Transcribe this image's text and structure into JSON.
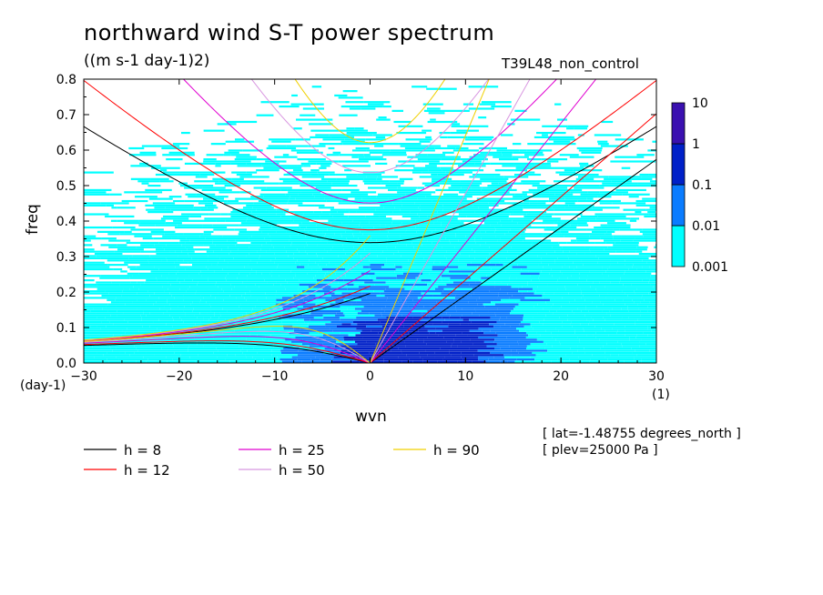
{
  "chart_data": {
    "type": "heatmap",
    "title": "northward wind S-T power spectrum",
    "units": "((m s-1 day-1)2)",
    "run_name": "T39L48_non_control",
    "xlabel": "wvn",
    "ylabel": "freq",
    "x_unit_left": "(day-1)",
    "x_unit_right": "(1)",
    "xlim": [
      -30,
      30
    ],
    "ylim": [
      0,
      0.8
    ],
    "xticks": [
      -30,
      -20,
      -10,
      0,
      10,
      20,
      30
    ],
    "yticks": [
      0.0,
      0.1,
      0.2,
      0.3,
      0.4,
      0.5,
      0.6,
      0.7,
      0.8
    ],
    "colorbar": {
      "levels": [
        "0.001",
        "0.01",
        "0.1",
        "1",
        "10"
      ],
      "colors": [
        "#00ffff",
        "#0a7cff",
        "#0020c8",
        "#3a10b0"
      ]
    },
    "colors": {
      "h8": "#000000",
      "h12": "#ff0000",
      "h25": "#e000d0",
      "h50": "#d896e0",
      "h90": "#f0d000"
    },
    "dispersion_curves": [
      {
        "name": "h =  8",
        "h": 8,
        "color": "#000000"
      },
      {
        "name": "h = 12",
        "h": 12,
        "color": "#ff0000"
      },
      {
        "name": "h = 25",
        "h": 25,
        "color": "#e000d0"
      },
      {
        "name": "h = 50",
        "h": 50,
        "color": "#d896e0"
      },
      {
        "name": "h = 90",
        "h": 90,
        "color": "#f0d000"
      }
    ],
    "meta_lines": [
      "[ lat=-1.48755 degrees_north ]",
      "[ plev=25000 Pa ]"
    ]
  }
}
